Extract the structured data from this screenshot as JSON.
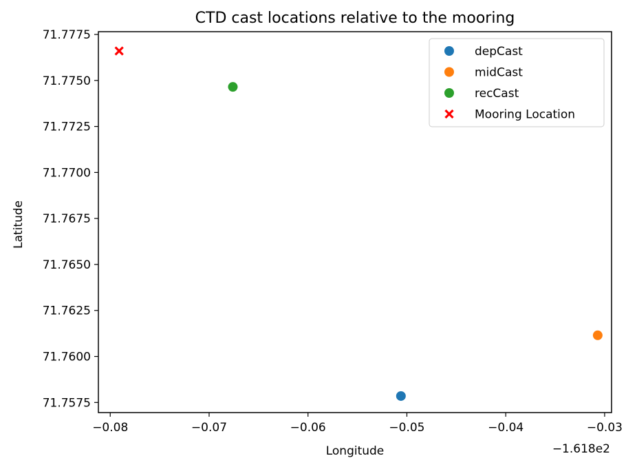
{
  "chart_data": {
    "type": "scatter",
    "title": "CTD cast locations relative to the mooring",
    "xlabel": "Longitude",
    "ylabel": "Latitude",
    "x_offset_label": "−1.618e2",
    "xlim": [
      -0.0812,
      -0.0293
    ],
    "ylim": [
      71.75695,
      71.77765
    ],
    "x_ticks": [
      {
        "value": -0.08,
        "label": "−0.08"
      },
      {
        "value": -0.07,
        "label": "−0.07"
      },
      {
        "value": -0.06,
        "label": "−0.06"
      },
      {
        "value": -0.05,
        "label": "−0.05"
      },
      {
        "value": -0.04,
        "label": "−0.04"
      },
      {
        "value": -0.03,
        "label": "−0.03"
      }
    ],
    "y_ticks": [
      {
        "value": 71.7575,
        "label": "71.7575"
      },
      {
        "value": 71.76,
        "label": "71.7600"
      },
      {
        "value": 71.7625,
        "label": "71.7625"
      },
      {
        "value": 71.765,
        "label": "71.7650"
      },
      {
        "value": 71.7675,
        "label": "71.7675"
      },
      {
        "value": 71.77,
        "label": "71.7700"
      },
      {
        "value": 71.7725,
        "label": "71.7725"
      },
      {
        "value": 71.775,
        "label": "71.7750"
      },
      {
        "value": 71.7775,
        "label": "71.7775"
      }
    ],
    "legend_position": "top-right",
    "grid": false,
    "series": [
      {
        "name": "depCast",
        "marker": "circle",
        "color": "#1f77b4",
        "points": [
          {
            "x": -0.0506,
            "y": 71.75785
          }
        ]
      },
      {
        "name": "midCast",
        "marker": "circle",
        "color": "#ff7f0e",
        "points": [
          {
            "x": -0.0307,
            "y": 71.76115
          }
        ]
      },
      {
        "name": "recCast",
        "marker": "circle",
        "color": "#2ca02c",
        "points": [
          {
            "x": -0.0676,
            "y": 71.77465
          }
        ]
      },
      {
        "name": "Mooring Location",
        "marker": "x",
        "color": "#ff0000",
        "points": [
          {
            "x": -0.0791,
            "y": 71.7766
          }
        ]
      }
    ]
  }
}
